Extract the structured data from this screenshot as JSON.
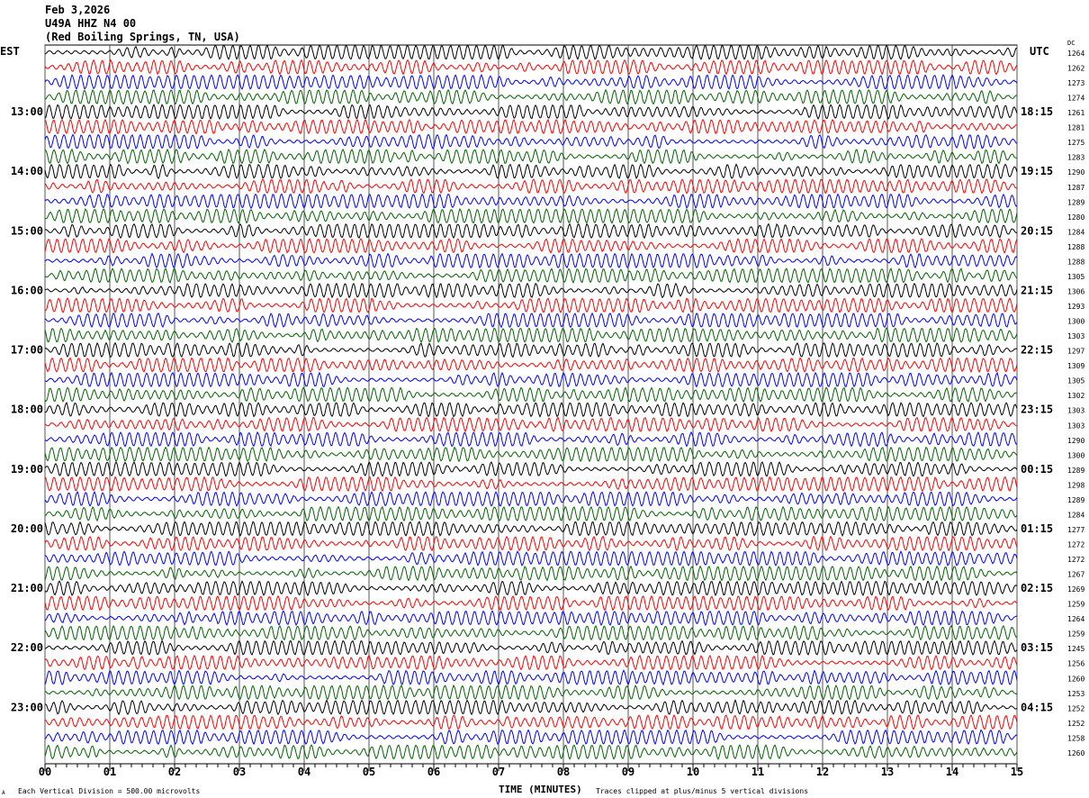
{
  "header": {
    "date": "Feb 3,2026",
    "station": "U49A HHZ N4 00",
    "location": "(Red Boiling Springs, TN, USA)"
  },
  "left_axis_label": "EST",
  "right_axis_label": "UTC",
  "dc_label": "DC",
  "footer": {
    "scale_note": "Each Vertical Division =  500.00 microvolts",
    "xlabel": "TIME (MINUTES)",
    "clip_note": "Traces clipped at plus/minus 5 vertical divisions",
    "corner_mark": "A"
  },
  "chart_data": {
    "type": "line",
    "subtype": "helicorder",
    "xlabel": "TIME (MINUTES)",
    "xlim": [
      0,
      15
    ],
    "x_ticks": [
      "00",
      "01",
      "02",
      "03",
      "04",
      "05",
      "06",
      "07",
      "08",
      "09",
      "10",
      "11",
      "12",
      "13",
      "14",
      "15"
    ],
    "grid": "vertical lines each minute",
    "minutes_per_line": 15,
    "trace_colors": [
      "#000000",
      "#ff0000",
      "#0000ff",
      "#006400"
    ],
    "est_hour_labels": [
      "13:00",
      "14:00",
      "15:00",
      "16:00",
      "17:00",
      "18:00",
      "19:00",
      "20:00",
      "21:00",
      "22:00",
      "23:00"
    ],
    "utc_hour_labels": [
      "18:15",
      "19:15",
      "20:15",
      "21:15",
      "22:15",
      "23:15",
      "00:15",
      "01:15",
      "02:15",
      "03:15",
      "04:15"
    ],
    "dc_offsets": [
      1264,
      1262,
      1273,
      1274,
      1261,
      1281,
      1275,
      1283,
      1290,
      1287,
      1289,
      1280,
      1284,
      1288,
      1288,
      1305,
      1306,
      1293,
      1300,
      1303,
      1297,
      1309,
      1305,
      1302,
      1303,
      1303,
      1290,
      1300,
      1289,
      1298,
      1289,
      1284,
      1277,
      1272,
      1272,
      1267,
      1269,
      1259,
      1264,
      1259,
      1245,
      1256,
      1260,
      1253,
      1252,
      1252,
      1258,
      1260
    ]
  }
}
